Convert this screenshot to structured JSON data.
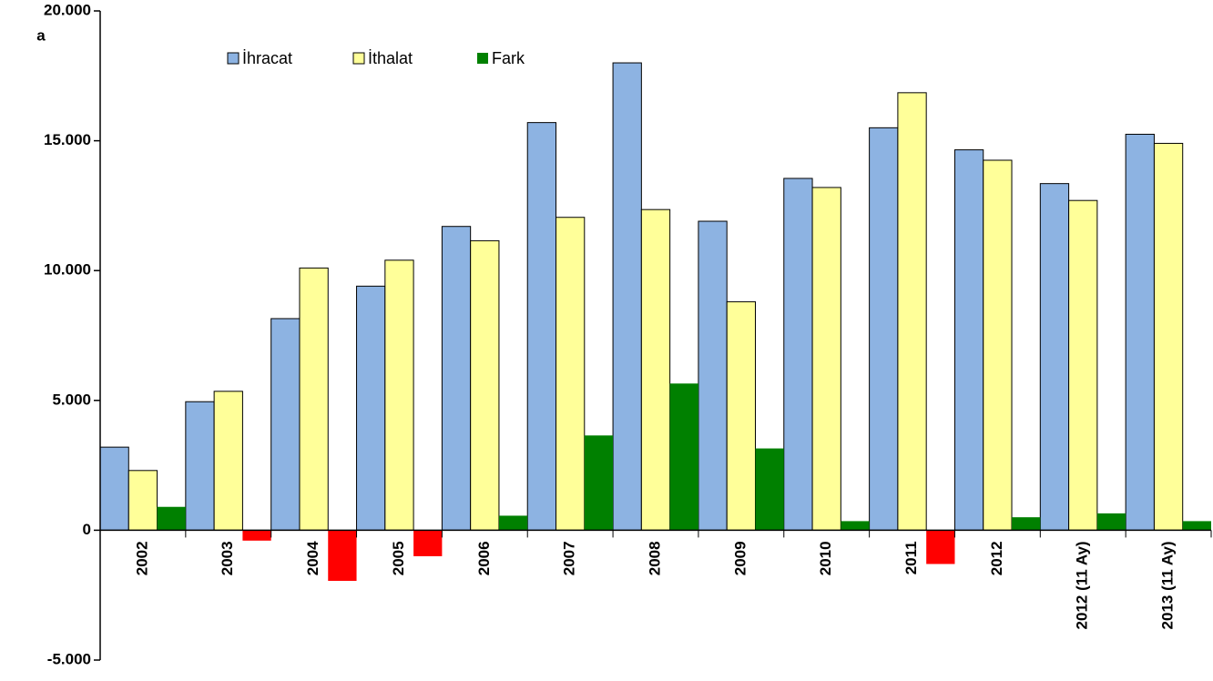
{
  "chart_data": {
    "type": "bar",
    "y_axis_label": "a",
    "categories": [
      "2002",
      "2003",
      "2004",
      "2005",
      "2006",
      "2007",
      "2008",
      "2009",
      "2010",
      "2011",
      "2012",
      "2012 (11 Ay)",
      "2013 (11 Ay)"
    ],
    "series": [
      {
        "name": "İhracat",
        "color": "#8db3e2",
        "values": [
          3200,
          4950,
          8150,
          9400,
          11700,
          15700,
          18000,
          11900,
          13550,
          15500,
          14650,
          13350,
          15250
        ]
      },
      {
        "name": "İthalat",
        "color": "#ffff99",
        "values": [
          2300,
          5350,
          10100,
          10400,
          11150,
          12050,
          12350,
          8800,
          13200,
          16850,
          14250,
          12700,
          14900
        ]
      },
      {
        "name": "Fark",
        "color": "#008000",
        "negative_color": "#ff0000",
        "values": [
          900,
          -400,
          -1950,
          -1000,
          560,
          3650,
          5650,
          3150,
          350,
          -1300,
          500,
          650,
          350
        ]
      }
    ],
    "ylim": [
      -5000,
      20000
    ],
    "yticks": [
      {
        "value": -5000,
        "label": "-5.000"
      },
      0,
      {
        "value": 5000,
        "label": "5.000"
      },
      {
        "value": 10000,
        "label": "10.000"
      },
      {
        "value": 15000,
        "label": "15.000"
      },
      {
        "value": 20000,
        "label": "20.000"
      }
    ],
    "legend": "top"
  }
}
